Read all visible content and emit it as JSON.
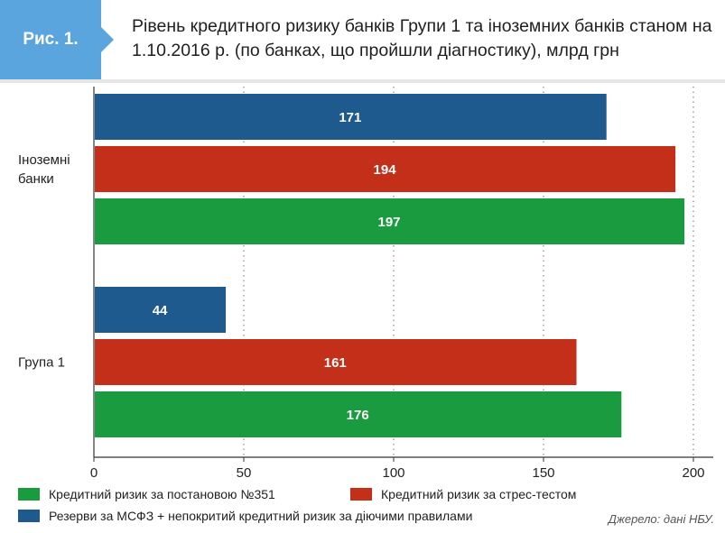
{
  "figure": {
    "badge": "Рис. 1.",
    "title_line1": "Рівень кредитного ризику банків Групи 1 та іноземних банків станом на",
    "title_line2": "1.10.2016 р. (по банках, що пройшли діагностику), млрд  грн",
    "source": "Джерело: дані НБУ."
  },
  "colors": {
    "blue": "#1f5a8e",
    "red": "#c42f1a",
    "green": "#1a9b40",
    "badge": "#5aa5dd"
  },
  "chart_data": {
    "type": "bar",
    "orientation": "horizontal",
    "categories": [
      "Іноземні\nбанки",
      "Група 1"
    ],
    "series": [
      {
        "name": "Резерви за МСФЗ + непокритий кредитний ризик за діючими правилами",
        "color": "#1f5a8e",
        "values": [
          171,
          44
        ]
      },
      {
        "name": "Кредитний ризик за стрес-тестом",
        "color": "#c42f1a",
        "values": [
          194,
          161
        ]
      },
      {
        "name": "Кредитний ризик за постановою №351",
        "color": "#1a9b40",
        "values": [
          197,
          176
        ]
      }
    ],
    "xlim": [
      0,
      200
    ],
    "xticks": [
      0,
      50,
      100,
      150,
      200
    ],
    "grid": "vertical dotted",
    "legend": "bottom",
    "data_labels": true
  },
  "legend": [
    {
      "label": "Кредитний ризик за постановою №351",
      "color": "#1a9b40"
    },
    {
      "label": "Кредитний ризик за стрес-тестом",
      "color": "#c42f1a"
    },
    {
      "label": "Резерви за МСФЗ + непокритий кредитний ризик за діючими правилами",
      "color": "#1f5a8e"
    }
  ]
}
